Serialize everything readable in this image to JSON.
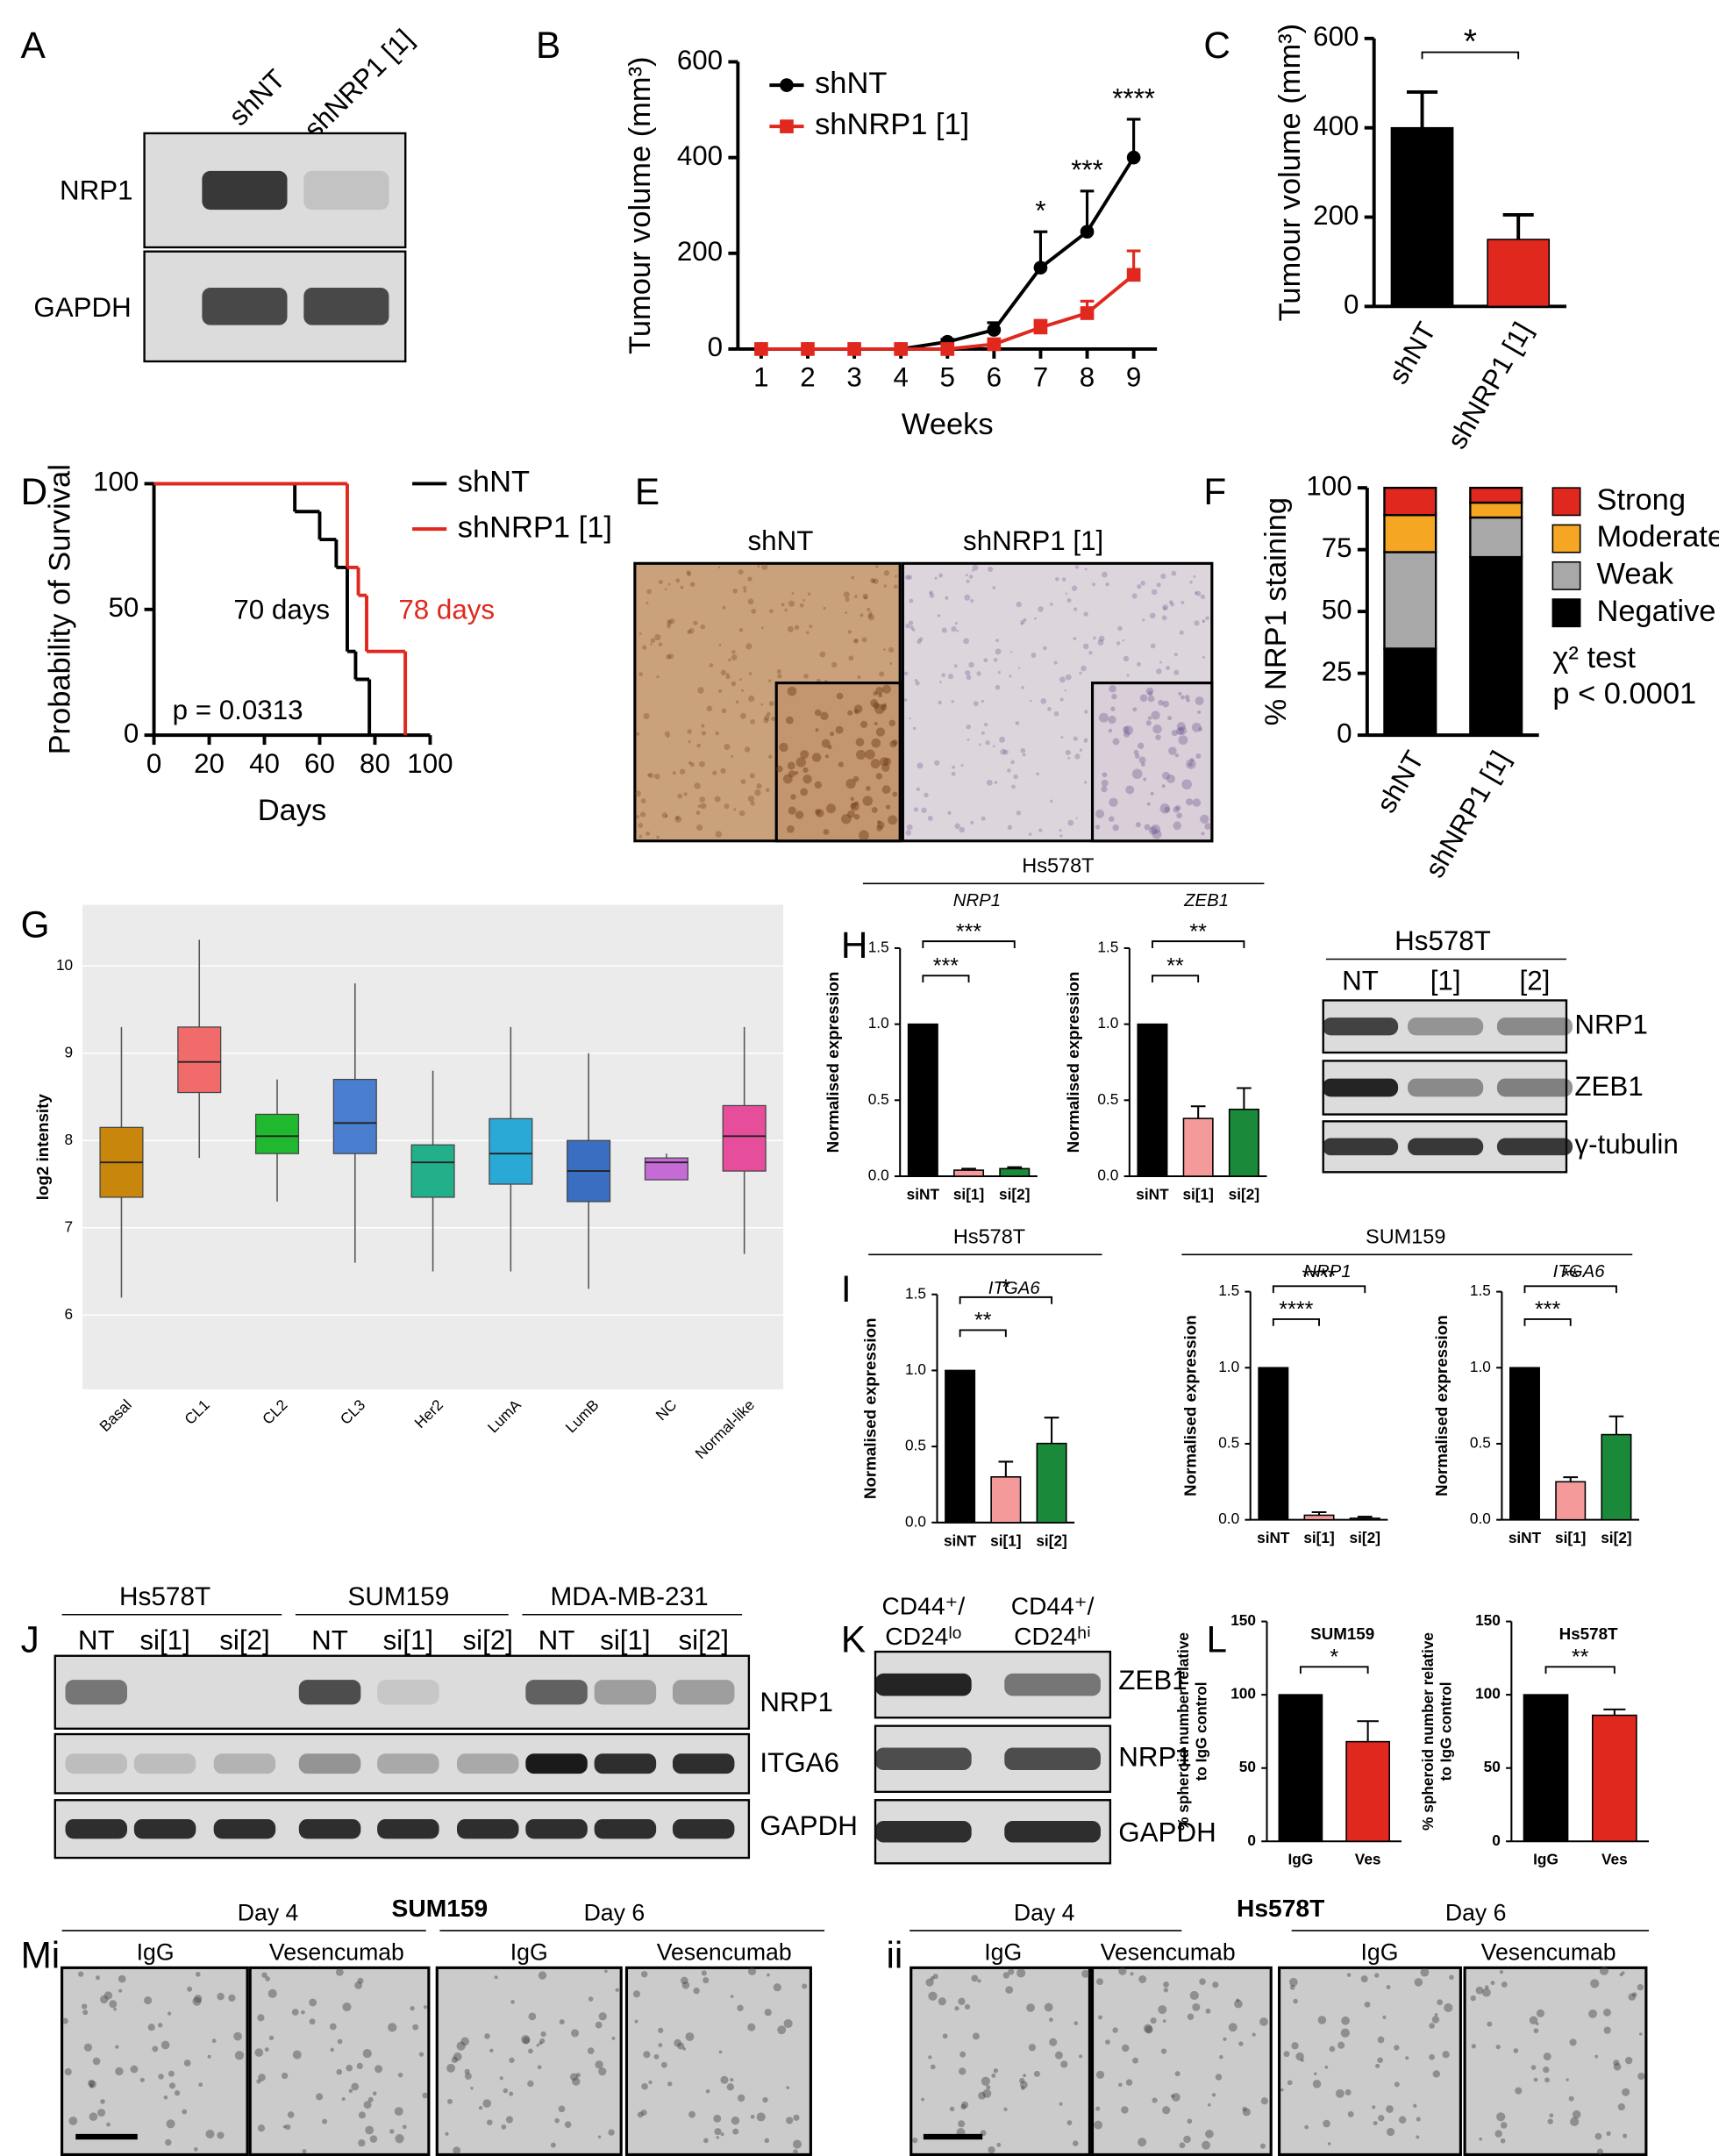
{
  "panel_labels": [
    "A",
    "B",
    "C",
    "D",
    "E",
    "F",
    "G",
    "H",
    "I",
    "J",
    "K",
    "L",
    "Mi",
    "ii"
  ],
  "blot_A": {
    "lanes": [
      "shNT",
      "shNRP1 [1]"
    ],
    "rows": [
      "NRP1",
      "GAPDH"
    ]
  },
  "image_E": {
    "titles": [
      "shNT",
      "shNRP1 [1]"
    ]
  },
  "group_H": "Hs578T",
  "blot_H": {
    "title": "Hs578T",
    "lanes": [
      "NT",
      "[1]",
      "[2]"
    ],
    "rows": [
      "NRP1",
      "ZEB1",
      "γ-tubulin"
    ]
  },
  "groups_I": [
    "Hs578T",
    "SUM159"
  ],
  "blot_J": {
    "groups": [
      "Hs578T",
      "SUM159",
      "MDA-MB-231"
    ],
    "lanes": [
      "NT",
      "si[1]",
      "si[2]",
      "NT",
      "si[1]",
      "si[2]",
      "NT",
      "si[1]",
      "si[2]"
    ],
    "rows": [
      "NRP1",
      "ITGA6",
      "GAPDH"
    ]
  },
  "blot_K": {
    "lanes": [
      [
        "CD44⁺/",
        "CD24ˡᵒ"
      ],
      [
        "CD44⁺/",
        "CD24ʰⁱ"
      ]
    ],
    "rows": [
      "ZEB1",
      "NRP1",
      "GAPDH"
    ]
  },
  "images_M": [
    {
      "title": "SUM159",
      "days": [
        "Day 4",
        "Day 6"
      ],
      "conditions": [
        "IgG",
        "Vesencumab",
        "IgG",
        "Vesencumab"
      ]
    },
    {
      "title": "Hs578T",
      "days": [
        "Day 4",
        "Day 6"
      ],
      "conditions": [
        "IgG",
        "Vesencumab",
        "IgG",
        "Vesencumab"
      ]
    }
  ],
  "chart_data": [
    {
      "type": "line",
      "x": [
        1,
        2,
        3,
        4,
        5,
        6,
        7,
        8,
        9
      ],
      "xlim": [
        0.5,
        9.5
      ],
      "xticks": [
        1,
        2,
        3,
        4,
        5,
        6,
        7,
        8,
        9
      ],
      "xlabel": "Weeks",
      "ylabel": "Tumour volume (mm³)",
      "ylim": [
        0,
        600
      ],
      "yticks": [
        0,
        200,
        400,
        600
      ],
      "series": [
        {
          "name": "shNT",
          "color": "#000000",
          "values": [
            0,
            0,
            0,
            0,
            15,
            40,
            170,
            245,
            400
          ],
          "errors": [
            0,
            0,
            0,
            0,
            5,
            15,
            75,
            85,
            80
          ]
        },
        {
          "name": "shNRP1 [1]",
          "color": "#e0281e",
          "values": [
            0,
            0,
            0,
            0,
            0,
            10,
            45,
            75,
            155
          ],
          "errors": [
            0,
            0,
            0,
            0,
            0,
            5,
            15,
            25,
            50
          ]
        }
      ],
      "annotations": [
        {
          "x": 7,
          "text": "*"
        },
        {
          "x": 8,
          "text": "***"
        },
        {
          "x": 9,
          "text": "****"
        }
      ]
    },
    {
      "type": "bar",
      "categories": [
        "shNT",
        "shNRP1 [1]"
      ],
      "values": [
        400,
        150
      ],
      "errors": [
        80,
        55
      ],
      "colors": [
        "#000000",
        "#e0281e"
      ],
      "ylabel": "Tumour volume (mm³)",
      "ylim": [
        0,
        600
      ],
      "yticks": [
        0,
        200,
        400,
        600
      ],
      "significance": [
        {
          "between": [
            0,
            1
          ],
          "label": "*"
        }
      ]
    },
    {
      "type": "survival",
      "xlabel": "Days",
      "ylabel": "Probability of Survival",
      "xlim": [
        0,
        100
      ],
      "xticks": [
        0,
        20,
        40,
        60,
        80,
        100
      ],
      "ylim": [
        0,
        100
      ],
      "yticks": [
        0,
        50,
        100
      ],
      "series": [
        {
          "name": "shNT",
          "color": "#000000",
          "x": [
            0,
            51,
            60,
            66,
            70,
            73,
            78
          ],
          "values": [
            100,
            88.9,
            77.8,
            66.7,
            33.3,
            22.2,
            0
          ]
        },
        {
          "name": "shNRP1 [1]",
          "color": "#e0281e",
          "x": [
            0,
            70,
            74,
            77,
            91
          ],
          "values": [
            100,
            66.7,
            55.6,
            33.3,
            0
          ]
        }
      ],
      "annotations": [
        "70 days",
        "78 days",
        "p = 0.0313"
      ]
    },
    {
      "type": "stacked_bar",
      "categories": [
        "shNT",
        "shNRP1 [1]"
      ],
      "ylabel": "% NRP1 staining",
      "ylim": [
        0,
        100
      ],
      "yticks": [
        0,
        25,
        50,
        75,
        100
      ],
      "series": [
        {
          "name": "Negative",
          "color": "#000000",
          "values": [
            35,
            72
          ]
        },
        {
          "name": "Weak",
          "color": "#a8a8a8",
          "values": [
            39,
            16
          ]
        },
        {
          "name": "Moderate",
          "color": "#f5a623",
          "values": [
            15,
            6
          ]
        },
        {
          "name": "Strong",
          "color": "#e0281e",
          "values": [
            11,
            6
          ]
        }
      ],
      "annotations": [
        "χ² test",
        "p < 0.0001"
      ]
    },
    {
      "type": "box",
      "categories": [
        "Basal",
        "CL1",
        "CL2",
        "CL3",
        "Her2",
        "LumA",
        "LumB",
        "NC",
        "Normal-like"
      ],
      "colors": [
        "#c8860c",
        "#f26b6b",
        "#1fb82e",
        "#4a7fcf",
        "#22b08a",
        "#2aa9d6",
        "#3a6ec0",
        "#c46bd6",
        "#e64d9b"
      ],
      "q1": [
        7.35,
        8.55,
        7.85,
        7.85,
        7.35,
        7.5,
        7.3,
        7.55,
        7.65
      ],
      "median": [
        7.75,
        8.9,
        8.05,
        8.2,
        7.75,
        7.85,
        7.65,
        7.75,
        8.05
      ],
      "q3": [
        8.15,
        9.3,
        8.3,
        8.7,
        7.95,
        8.25,
        8.0,
        7.8,
        8.4
      ],
      "whisker_low": [
        6.2,
        7.8,
        7.3,
        6.6,
        6.5,
        6.5,
        6.3,
        7.55,
        6.7
      ],
      "whisker_high": [
        9.3,
        10.3,
        8.7,
        9.8,
        8.8,
        9.3,
        9.0,
        7.85,
        9.3
      ],
      "ylabel": "log2 intensity",
      "ylim": [
        5.15,
        10.7
      ],
      "yticks": [
        6,
        7,
        8,
        9,
        10
      ],
      "grid": true
    },
    {
      "type": "bar",
      "title": "NRP1",
      "categories": [
        "siNT",
        "si[1]",
        "si[2]"
      ],
      "values": [
        1,
        0.04,
        0.05
      ],
      "errors": [
        0,
        0.01,
        0.01
      ],
      "colors": [
        "#000000",
        "#f59a9a",
        "#1a8a3a"
      ],
      "ylabel": "Normalised expression",
      "ylim": [
        0,
        1.5
      ],
      "yticks": [
        {
          "value": 0,
          "label": "0.0"
        },
        0.5,
        {
          "value": 1,
          "label": "1.0"
        },
        1.5
      ],
      "significance": [
        {
          "between": [
            0,
            1
          ],
          "label": "***"
        },
        {
          "between": [
            0,
            2
          ],
          "label": "***"
        }
      ]
    },
    {
      "type": "bar",
      "title": "ZEB1",
      "categories": [
        "siNT",
        "si[1]",
        "si[2]"
      ],
      "values": [
        1,
        0.38,
        0.44
      ],
      "errors": [
        0,
        0.08,
        0.14
      ],
      "colors": [
        "#000000",
        "#f59a9a",
        "#1a8a3a"
      ],
      "ylabel": "Normalised expression",
      "ylim": [
        0,
        1.5
      ],
      "yticks": [
        {
          "value": 0,
          "label": "0.0"
        },
        0.5,
        {
          "value": 1,
          "label": "1.0"
        },
        1.5
      ],
      "significance": [
        {
          "between": [
            0,
            1
          ],
          "label": "**"
        },
        {
          "between": [
            0,
            2
          ],
          "label": "**"
        }
      ]
    },
    {
      "type": "bar",
      "title": "ITGA6",
      "categories": [
        "siNT",
        "si[1]",
        "si[2]"
      ],
      "values": [
        1,
        0.3,
        0.52
      ],
      "errors": [
        0,
        0.1,
        0.17
      ],
      "colors": [
        "#000000",
        "#f59a9a",
        "#1a8a3a"
      ],
      "ylabel": "Normalised expression",
      "ylim": [
        0,
        1.5
      ],
      "yticks": [
        {
          "value": 0,
          "label": "0.0"
        },
        0.5,
        {
          "value": 1,
          "label": "1.0"
        },
        1.5
      ],
      "significance": [
        {
          "between": [
            0,
            1
          ],
          "label": "**"
        },
        {
          "between": [
            0,
            2
          ],
          "label": "*"
        }
      ]
    },
    {
      "type": "bar",
      "title": "NRP1",
      "categories": [
        "siNT",
        "si[1]",
        "si[2]"
      ],
      "values": [
        1,
        0.03,
        0.01
      ],
      "errors": [
        0,
        0.02,
        0.01
      ],
      "colors": [
        "#000000",
        "#f59a9a",
        "#1a8a3a"
      ],
      "ylabel": "Normalised expression",
      "ylim": [
        0,
        1.5
      ],
      "yticks": [
        {
          "value": 0,
          "label": "0.0"
        },
        0.5,
        {
          "value": 1,
          "label": "1.0"
        },
        1.5
      ],
      "significance": [
        {
          "between": [
            0,
            1
          ],
          "label": "****"
        },
        {
          "between": [
            0,
            2
          ],
          "label": "****"
        }
      ]
    },
    {
      "type": "bar",
      "title": "ITGA6",
      "categories": [
        "siNT",
        "si[1]",
        "si[2]"
      ],
      "values": [
        1,
        0.25,
        0.56
      ],
      "errors": [
        0,
        0.03,
        0.12
      ],
      "colors": [
        "#000000",
        "#f59a9a",
        "#1a8a3a"
      ],
      "ylabel": "Normalised expression",
      "ylim": [
        0,
        1.5
      ],
      "yticks": [
        {
          "value": 0,
          "label": "0.0"
        },
        0.5,
        {
          "value": 1,
          "label": "1.0"
        },
        1.5
      ],
      "significance": [
        {
          "between": [
            0,
            1
          ],
          "label": "***"
        },
        {
          "between": [
            0,
            2
          ],
          "label": "**"
        }
      ]
    },
    {
      "type": "bar",
      "title": "SUM159",
      "categories": [
        "IgG",
        "Ves"
      ],
      "values": [
        100,
        68
      ],
      "errors": [
        0,
        14
      ],
      "colors": [
        "#000000",
        "#e0281e"
      ],
      "ylabel": [
        "% spheroid number relative",
        "to IgG control"
      ],
      "ylim": [
        0,
        150
      ],
      "yticks": [
        0,
        50,
        100,
        150
      ],
      "significance": [
        {
          "between": [
            0,
            1
          ],
          "label": "*"
        }
      ]
    },
    {
      "type": "bar",
      "title": "Hs578T",
      "categories": [
        "IgG",
        "Ves"
      ],
      "values": [
        100,
        86
      ],
      "errors": [
        0,
        4
      ],
      "colors": [
        "#000000",
        "#e0281e"
      ],
      "ylabel": [
        "% spheroid number relative",
        "to IgG control"
      ],
      "ylim": [
        0,
        150
      ],
      "yticks": [
        0,
        50,
        100,
        150
      ],
      "significance": [
        {
          "between": [
            0,
            1
          ],
          "label": "**"
        }
      ]
    }
  ]
}
